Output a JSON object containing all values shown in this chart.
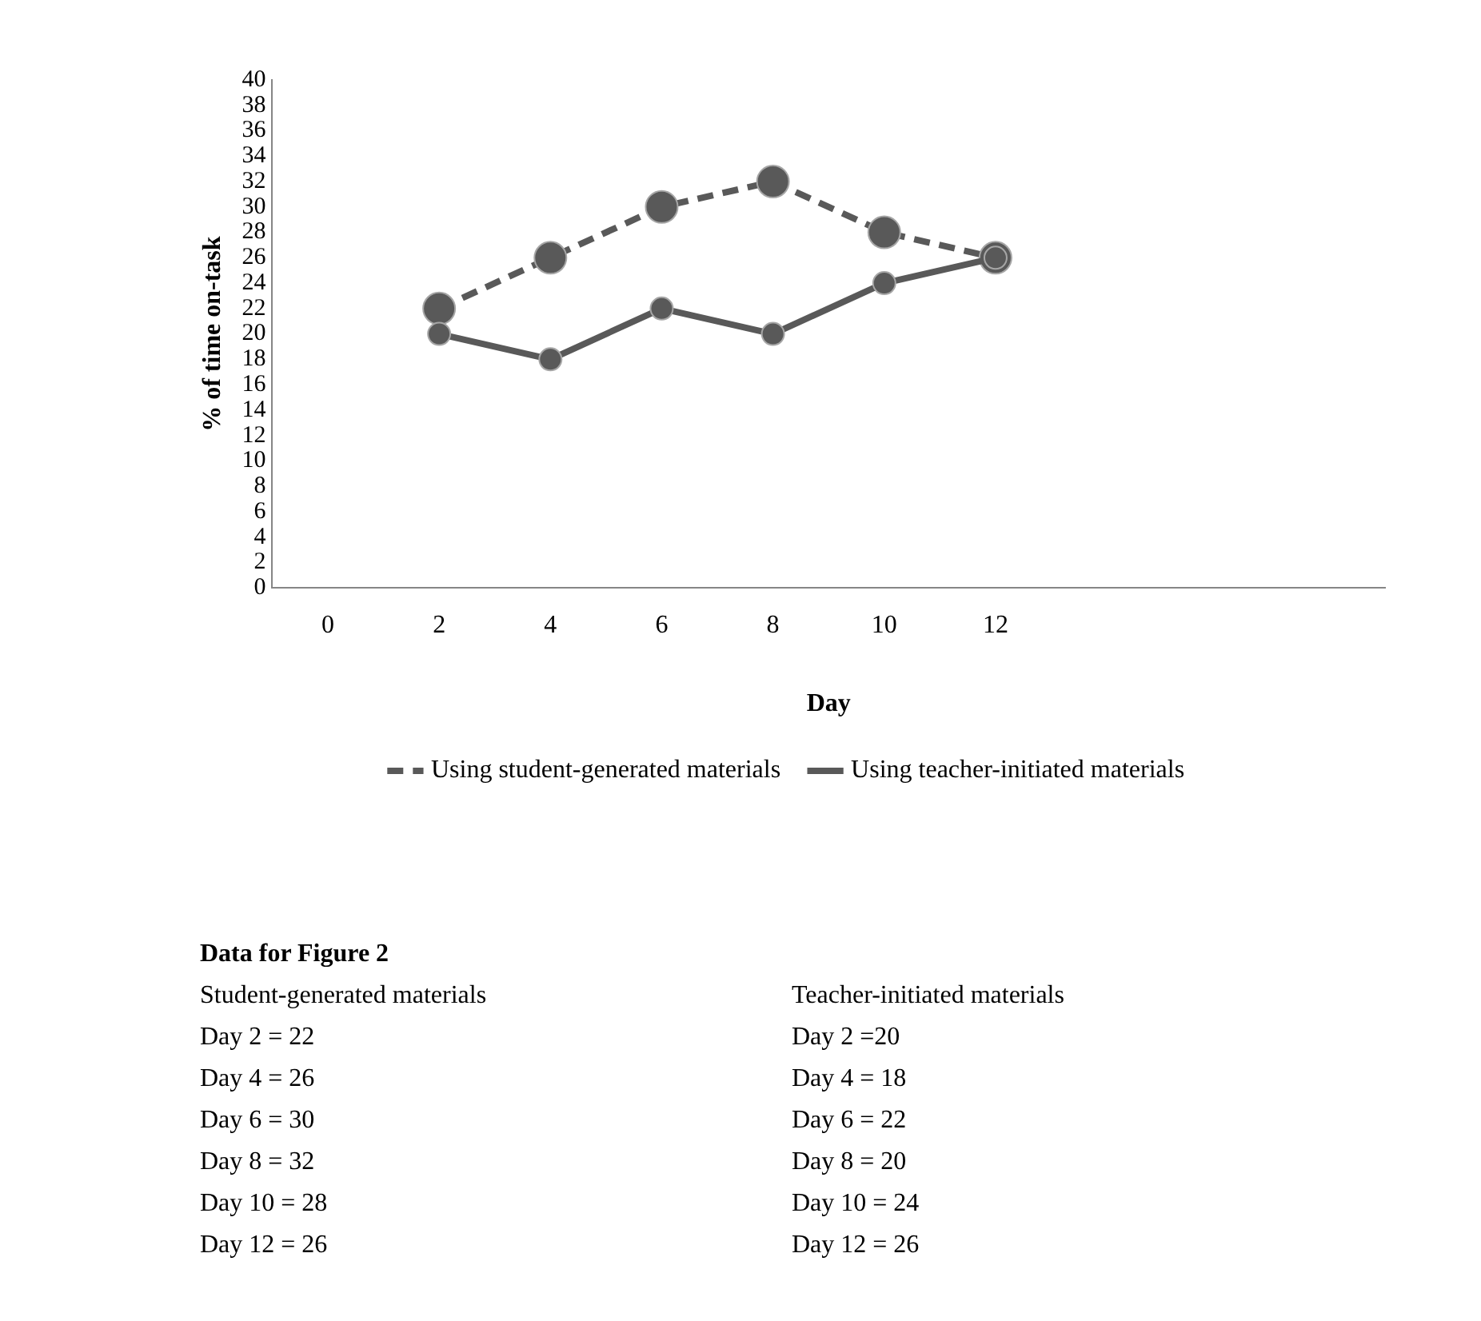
{
  "chart_data": {
    "type": "line",
    "xlabel": "Day",
    "ylabel": "% of time on-task",
    "categories": [
      "0",
      "2",
      "4",
      "6",
      "8",
      "10",
      "12",
      null,
      null,
      null
    ],
    "series": [
      {
        "name": "Using student-generated materials",
        "color": "#595959",
        "line_style": "dashed",
        "values": [
          null,
          22,
          26,
          30,
          32,
          28,
          26,
          null,
          null,
          null
        ]
      },
      {
        "name": "Using teacher-initiated materials",
        "color": "#595959",
        "line_style": "solid",
        "values": [
          null,
          20,
          18,
          22,
          20,
          24,
          26,
          null,
          null,
          null
        ]
      }
    ],
    "ylim": [
      0,
      40
    ],
    "yticks": [
      0,
      2,
      4,
      6,
      8,
      10,
      12,
      14,
      16,
      18,
      20,
      22,
      24,
      26,
      28,
      30,
      32,
      34,
      36,
      38,
      40
    ],
    "grid": false,
    "legend": "bottom",
    "marker": "circle",
    "annotations": [
      "Data for Figure 2",
      "Student-generated materials",
      "Teacher-initiated materials",
      "Day 2 = 22",
      "Day 2 =20",
      "Day 4 = 26",
      "Day 4 = 18",
      "Day 6 = 30",
      "Day 6 = 22",
      "Day 8 = 32",
      "Day 8 = 20",
      "Day 10 = 28",
      "Day 10 = 24",
      "Day 12 = 26",
      "Day 12 = 26"
    ]
  }
}
